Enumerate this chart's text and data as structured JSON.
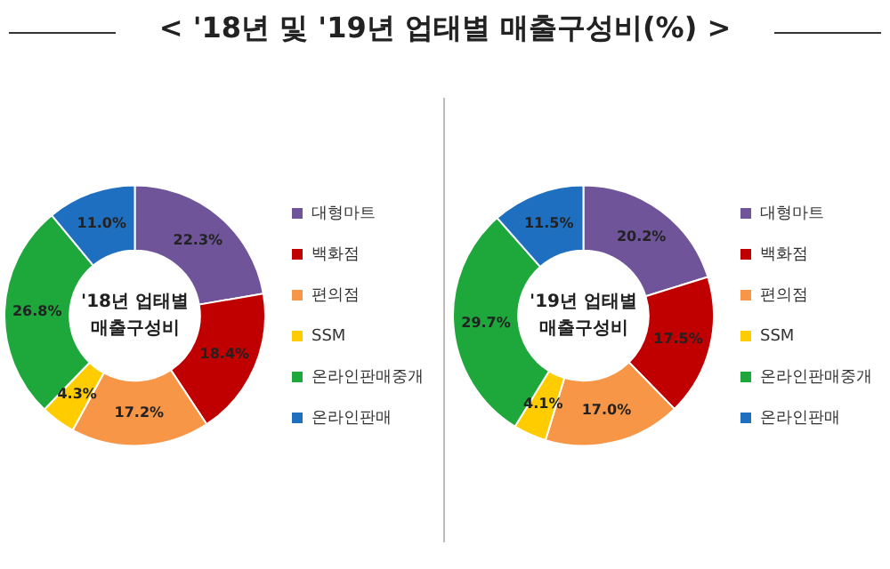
{
  "chart_data": [
    {
      "type": "donut",
      "title": "< '18년 및 '19년 업태별 매출구성비(%) >",
      "annotations": [
        "'18년 업태별 매출구성비"
      ],
      "categories": [
        "대형마트",
        "백화점",
        "편의점",
        "SSM",
        "온라인판매중개",
        "온라인판매"
      ],
      "values": [
        22.3,
        18.4,
        17.2,
        4.3,
        26.8,
        11.0
      ],
      "value_labels": [
        "22.3%",
        "18.4%",
        "17.2%",
        "4.3%",
        "26.8%",
        "11.0%"
      ],
      "colors": [
        "#6f5499",
        "#c00000",
        "#f79646",
        "#ffcc00",
        "#1ea83c",
        "#1f6fc0"
      ],
      "legend": "right"
    },
    {
      "type": "donut",
      "annotations": [
        "'19년 업태별 매출구성비"
      ],
      "categories": [
        "대형마트",
        "백화점",
        "편의점",
        "SSM",
        "온라인판매중개",
        "온라인판매"
      ],
      "values": [
        20.2,
        17.5,
        17.0,
        4.1,
        29.7,
        11.5
      ],
      "value_labels": [
        "20.2%",
        "17.5%",
        "17.0%",
        "4.1%",
        "29.7%",
        "11.5%"
      ],
      "colors": [
        "#6f5499",
        "#c00000",
        "#f79646",
        "#ffcc00",
        "#1ea83c",
        "#1f6fc0"
      ],
      "legend": "right"
    }
  ]
}
